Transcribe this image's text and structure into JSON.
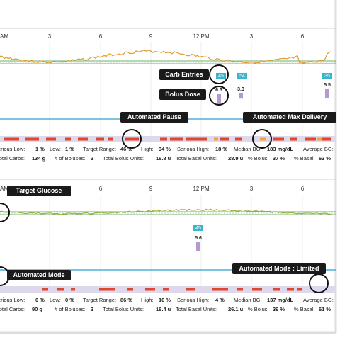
{
  "panels": [
    {
      "time_labels": [
        "AM",
        "3",
        "6",
        "9",
        "12 PM",
        "3",
        "6"
      ],
      "callouts": [
        "Carb Entries",
        "Bolus Dose",
        "Automated Pause",
        "Automated Max Delivery"
      ],
      "carbs": [
        "45",
        "54",
        "35"
      ],
      "boluses": [
        6.3,
        3.3,
        5.5
      ],
      "stats": [
        [
          "Serious Low:",
          "1 %",
          "Low:",
          "1 %",
          "Target Range:",
          "46 %",
          "High:",
          "34 %",
          "Serious High:",
          "18 %",
          "Median BG:",
          "183 mg/dL",
          "Average BG:"
        ],
        [
          "Total Carbs:",
          "134 g",
          "# of Boluses:",
          "3",
          "Total Bolus Units:",
          "16.8 u",
          "Total Basal Units:",
          "28.9 u",
          "% Bolus:",
          "37 %",
          "% Basal:",
          "63 %"
        ]
      ]
    },
    {
      "time_labels": [
        "AM",
        "3",
        "6",
        "9",
        "12 PM",
        "3",
        "6"
      ],
      "callouts": [
        "Target Glucose",
        "Automated Mode",
        "Automated Mode : Limited"
      ],
      "carbs": [
        "45"
      ],
      "boluses": [
        5.6
      ],
      "stats": [
        [
          "Serious Low:",
          "0 %",
          "Low:",
          "0 %",
          "Target Range:",
          "86 %",
          "High:",
          "10 %",
          "Serious High:",
          "4 %",
          "Median BG:",
          "137 mg/dL",
          "Average BG:"
        ],
        [
          "Total Carbs:",
          "90 g",
          "# of Boluses:",
          "3",
          "Total Bolus Units:",
          "16.4 u",
          "Total Basal Units:",
          "26.1 u",
          "% Bolus:",
          "39 %",
          "% Basal:",
          "61 %"
        ]
      ]
    }
  ]
}
